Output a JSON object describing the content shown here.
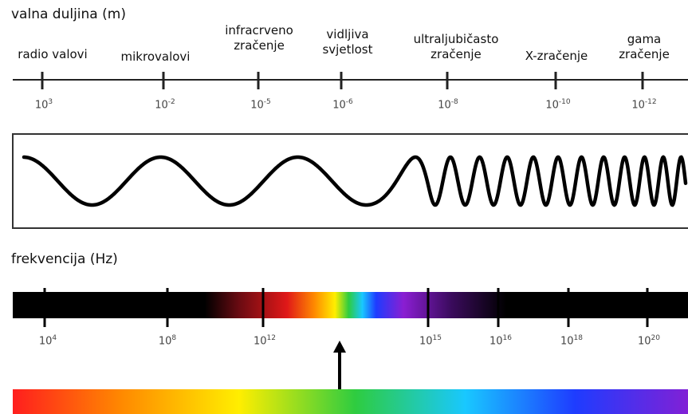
{
  "wavelength": {
    "title": "valna duljina (m)",
    "regions": [
      {
        "lines": [
          "radio valovi"
        ]
      },
      {
        "lines": [
          "mikrovalovi"
        ]
      },
      {
        "lines": [
          "infracrveno",
          "zračenje"
        ]
      },
      {
        "lines": [
          "vidljiva",
          "svjetlost"
        ]
      },
      {
        "lines": [
          "ultraljubičasto",
          "zračenje"
        ]
      },
      {
        "lines": [
          "X-zračenje"
        ]
      },
      {
        "lines": [
          "gama",
          "zračenje"
        ]
      }
    ],
    "ticks": [
      {
        "base": "10",
        "exp": "3"
      },
      {
        "base": "10",
        "exp": "-2"
      },
      {
        "base": "10",
        "exp": "-5"
      },
      {
        "base": "10",
        "exp": "-6"
      },
      {
        "base": "10",
        "exp": "-8"
      },
      {
        "base": "10",
        "exp": "-10"
      },
      {
        "base": "10",
        "exp": "-12"
      }
    ]
  },
  "frequency": {
    "title": "frekvencija (Hz)",
    "ticks": [
      {
        "base": "10",
        "exp": "4"
      },
      {
        "base": "10",
        "exp": "8"
      },
      {
        "base": "10",
        "exp": "12"
      },
      {
        "base": "10",
        "exp": "15"
      },
      {
        "base": "10",
        "exp": "16"
      },
      {
        "base": "10",
        "exp": "18"
      },
      {
        "base": "10",
        "exp": "20"
      }
    ]
  },
  "colors": {
    "bar": "#000000",
    "red": "#ff1e1e",
    "orange": "#ff8a00",
    "yellow": "#ffee00",
    "green": "#2ecc40",
    "cyan": "#19c8ff",
    "blue": "#1e3cff",
    "violet": "#8a1ed2"
  }
}
